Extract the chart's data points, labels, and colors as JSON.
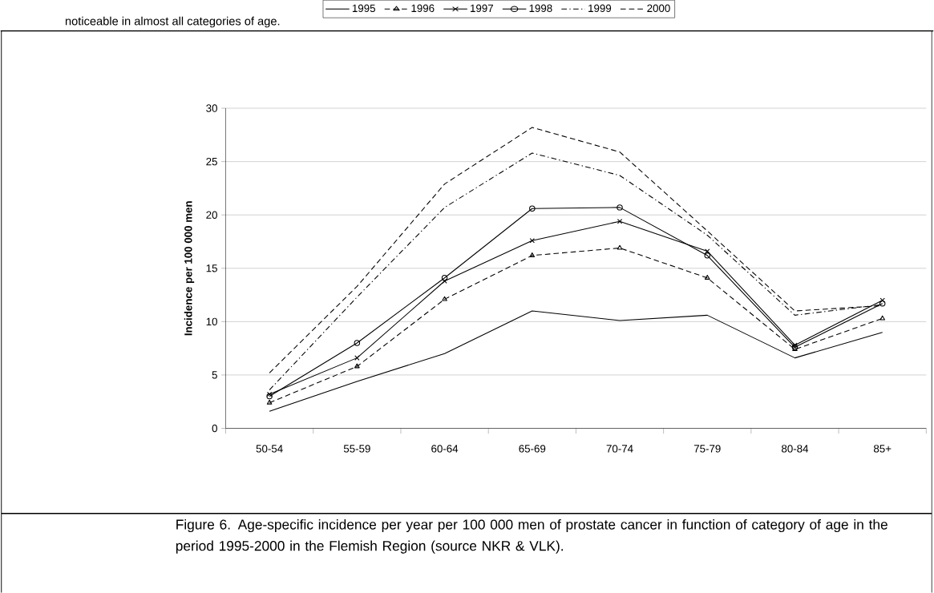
{
  "chart_data": {
    "type": "line",
    "ylabel": "Incidence per 100 000 men",
    "categories": [
      "50-54",
      "55-59",
      "60-64",
      "65-69",
      "70-74",
      "75-79",
      "80-84",
      "85+"
    ],
    "ylim": [
      0,
      30
    ],
    "yticks": [
      0,
      5,
      10,
      15,
      20,
      25,
      30
    ],
    "grid": "y",
    "legend": "top",
    "series": [
      {
        "name": "1995",
        "color": "#000000",
        "marker": "none",
        "line_style": "solid",
        "values": [
          1.6,
          4.4,
          7.0,
          11.0,
          10.1,
          10.6,
          6.6,
          9.0
        ]
      },
      {
        "name": "1996",
        "color": "#000000",
        "marker": "triangle",
        "line_style": "dashed",
        "values": [
          2.4,
          5.8,
          12.1,
          16.2,
          16.9,
          14.1,
          7.4,
          10.3
        ]
      },
      {
        "name": "1997",
        "color": "#000000",
        "marker": "cross",
        "line_style": "solid",
        "values": [
          3.2,
          6.6,
          13.8,
          17.6,
          19.4,
          16.6,
          7.8,
          12.0
        ]
      },
      {
        "name": "1998",
        "color": "#000000",
        "marker": "circle",
        "line_style": "solid",
        "values": [
          3.0,
          8.0,
          14.1,
          20.6,
          20.7,
          16.2,
          7.6,
          11.7
        ]
      },
      {
        "name": "1999",
        "color": "#000000",
        "marker": "none",
        "line_style": "dashdot",
        "values": [
          3.6,
          12.3,
          20.7,
          25.8,
          23.7,
          18.1,
          10.6,
          11.6
        ]
      },
      {
        "name": "2000",
        "color": "#000000",
        "marker": "none",
        "line_style": "dashed",
        "values": [
          5.2,
          13.3,
          22.9,
          28.2,
          25.9,
          18.5,
          11.0,
          11.5
        ]
      }
    ],
    "annotations": [
      "noticeable in almost all categories of age.",
      "Figure 6. Age-specific incidence per year per 100 000 men of prostate cancer in function of category of age in the period 1995-2000 in the Flemish Region (source NKR & VLK)."
    ]
  }
}
